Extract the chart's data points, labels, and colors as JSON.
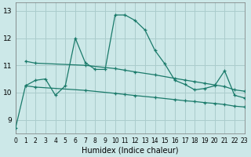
{
  "xlabel": "Humidex (Indice chaleur)",
  "bg_color": "#cce8e8",
  "grid_color": "#aacccc",
  "line_color": "#1a7a6a",
  "xlim": [
    0,
    23
  ],
  "ylim": [
    8.5,
    13.3
  ],
  "yticks": [
    9,
    10,
    11,
    12,
    13
  ],
  "xticks": [
    0,
    1,
    2,
    3,
    4,
    5,
    6,
    7,
    8,
    9,
    10,
    11,
    12,
    13,
    14,
    15,
    16,
    17,
    18,
    19,
    20,
    21,
    22,
    23
  ],
  "main_x": [
    0,
    1,
    2,
    3,
    4,
    5,
    6,
    7,
    8,
    9,
    10,
    11,
    12,
    13,
    14,
    15,
    16,
    17,
    18,
    19,
    20,
    21,
    22,
    23
  ],
  "main_y": [
    8.7,
    10.25,
    10.45,
    10.5,
    9.9,
    10.25,
    12.0,
    11.1,
    10.85,
    10.85,
    12.85,
    12.85,
    12.65,
    12.3,
    11.55,
    11.05,
    10.45,
    10.3,
    10.1,
    10.15,
    10.25,
    10.8,
    9.9,
    9.8
  ],
  "line2_x": [
    1,
    2,
    7,
    10,
    11,
    12,
    14,
    16,
    17,
    18,
    19,
    20,
    21,
    22,
    23
  ],
  "line2_y": [
    11.15,
    11.08,
    11.0,
    10.88,
    10.82,
    10.76,
    10.65,
    10.52,
    10.46,
    10.4,
    10.34,
    10.28,
    10.22,
    10.1,
    10.05
  ],
  "line3_x": [
    1,
    2,
    7,
    10,
    11,
    12,
    14,
    16,
    17,
    18,
    19,
    20,
    21,
    22,
    23
  ],
  "line3_y": [
    10.25,
    10.2,
    10.08,
    9.97,
    9.93,
    9.89,
    9.82,
    9.74,
    9.7,
    9.67,
    9.63,
    9.6,
    9.56,
    9.5,
    9.47
  ]
}
